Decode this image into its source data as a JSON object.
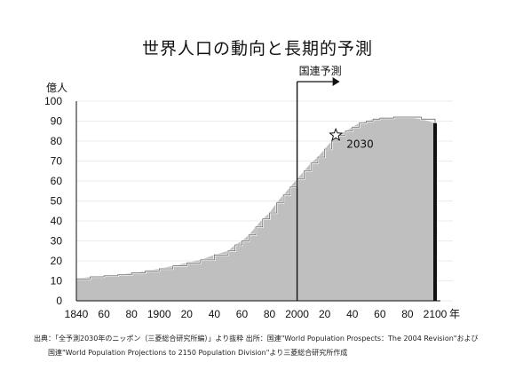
{
  "chart_data": {
    "type": "area",
    "title": "世界人口の動向と長期的予測",
    "ylabel": "億人",
    "ylim": [
      0,
      100
    ],
    "yticks": [
      "0",
      "10",
      "20",
      "30",
      "40",
      "50",
      "60",
      "70",
      "80",
      "90",
      "100"
    ],
    "xlim": [
      1840,
      2100
    ],
    "xticks": [
      "1840",
      "60",
      "80",
      "1900",
      "20",
      "40",
      "60",
      "80",
      "2000",
      "20",
      "40",
      "60",
      "80",
      "2100"
    ],
    "x_unit": "年",
    "series": [
      {
        "x": [
          1840,
          1850,
          1860,
          1870,
          1880,
          1890,
          1900,
          1910,
          1920,
          1930,
          1940,
          1950,
          1955,
          1960,
          1965,
          1970,
          1975,
          1980,
          1985,
          1990,
          1995,
          2000,
          2005,
          2010,
          2015,
          2020,
          2025,
          2030,
          2035,
          2040,
          2045,
          2050,
          2055,
          2060,
          2070,
          2080,
          2090,
          2100
        ],
        "values": [
          11,
          12,
          12.5,
          13,
          14,
          15,
          16,
          17.5,
          19,
          20.5,
          23,
          25,
          28,
          30,
          33,
          37,
          41,
          44,
          49,
          53,
          57,
          61,
          65,
          69,
          72,
          76,
          80,
          83,
          85,
          87,
          89,
          90,
          91,
          91.5,
          92,
          92,
          91,
          89
        ]
      }
    ],
    "annotations": {
      "projection_label": "国連予測",
      "projection_start": 2000,
      "marker_label": "2030",
      "marker_x": 2030,
      "marker_y": 83
    }
  },
  "source_lines": [
    "出典：「全予測2030年のニッポン（三菱総合研究所編）」より抜粋  出所：国連\"World Population Prospects：The 2004 Revision\"および",
    "国連\"World Population Projections to 2150 Population Division\"より三菱総合研究所作成"
  ],
  "colors": {
    "fill": "#bfbfbf",
    "edge": "#111111",
    "steps": "#ffffff"
  }
}
